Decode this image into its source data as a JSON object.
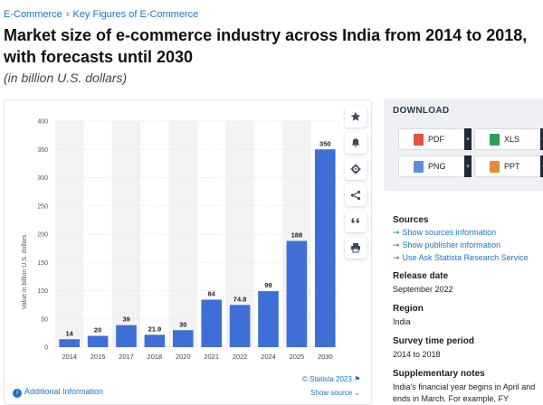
{
  "breadcrumb": {
    "items": [
      "E-Commerce",
      "Key Figures of E-Commerce"
    ],
    "separator": "›"
  },
  "page_title": "Market size of e-commerce industry across India from 2014 to 2018, with forecasts until 2030",
  "subtitle": "(in billion U.S. dollars)",
  "colors": {
    "bar": "#3e6fd6",
    "link": "#1a73c8",
    "band": "#f3f3f3"
  },
  "chart_data": {
    "type": "bar",
    "categories": [
      "2014",
      "2015",
      "2017",
      "2018",
      "2020",
      "2021",
      "2022",
      "2024",
      "2025",
      "2030"
    ],
    "values": [
      14,
      20,
      39,
      21.9,
      30,
      84,
      74.8,
      99,
      188,
      350
    ],
    "value_labels": [
      "14",
      "20",
      "39",
      "21.9",
      "30",
      "84",
      "74.8",
      "99",
      "188",
      "350"
    ],
    "ylabel": "Value in billion U.S. dollars",
    "xlabel": "",
    "ylim": [
      0,
      400
    ],
    "yticks": [
      "0",
      "50",
      "100",
      "150",
      "200",
      "250",
      "300",
      "350",
      "400"
    ]
  },
  "tools": [
    {
      "name": "star-icon",
      "label": "Favorite"
    },
    {
      "name": "bell-icon",
      "label": "Notification"
    },
    {
      "name": "gear-icon",
      "label": "Settings"
    },
    {
      "name": "share-icon",
      "label": "Share"
    },
    {
      "name": "quote-icon",
      "label": "Cite"
    },
    {
      "name": "print-icon",
      "label": "Print"
    }
  ],
  "footer": {
    "additional_info": "Additional Information",
    "copyright": "© Statista 2023",
    "show_source": "Show source"
  },
  "download": {
    "title": "DOWNLOAD",
    "buttons": [
      {
        "label": "PDF",
        "color": "#e0533d"
      },
      {
        "label": "XLS",
        "color": "#2e9e57"
      },
      {
        "label": "PNG",
        "color": "#5b8fd6"
      },
      {
        "label": "PPT",
        "color": "#e88a3a"
      }
    ]
  },
  "sources": {
    "title": "Sources",
    "links": [
      "Show sources information",
      "Show publisher information",
      "Use Ask Statista Research Service"
    ]
  },
  "release_date": {
    "title": "Release date",
    "value": "September 2022"
  },
  "region": {
    "title": "Region",
    "value": "India"
  },
  "survey_period": {
    "title": "Survey time period",
    "value": "2014 to 2018"
  },
  "supplementary": {
    "title": "Supplementary notes",
    "text": "India's financial year begins in April and ends in March. For example, FY"
  }
}
